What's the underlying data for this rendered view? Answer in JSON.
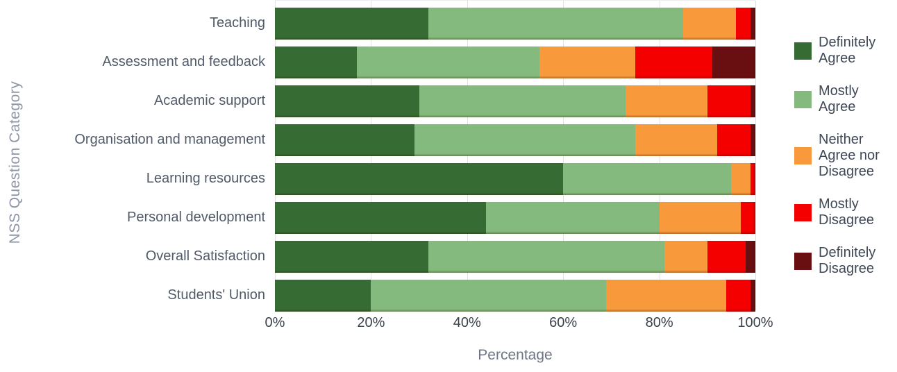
{
  "chart_data": {
    "type": "bar",
    "orientation": "horizontal-stacked",
    "title": "",
    "xlabel": "Percentage",
    "ylabel": "NSS Question Category",
    "xlim": [
      0,
      100
    ],
    "x_ticks": [
      "0%",
      "20%",
      "40%",
      "60%",
      "80%",
      "100%"
    ],
    "grid": "vertical",
    "legend_position": "right",
    "categories": [
      "Teaching",
      "Assessment and feedback",
      "Academic support",
      "Organisation and management",
      "Learning resources",
      "Personal development",
      "Overall Satisfaction",
      "Students' Union"
    ],
    "series": [
      {
        "name": "Definitely Agree",
        "color": "#366c34",
        "values": [
          32,
          17,
          30,
          29,
          60,
          44,
          32,
          20
        ]
      },
      {
        "name": "Mostly Agree",
        "color": "#84ba7d",
        "values": [
          53,
          38,
          43,
          46,
          35,
          36,
          49,
          49
        ]
      },
      {
        "name": "Neither Agree nor Disagree",
        "color": "#f89a3c",
        "values": [
          11,
          20,
          17,
          17,
          4,
          17,
          9,
          25
        ]
      },
      {
        "name": "Mostly Disagree",
        "color": "#f40000",
        "values": [
          3,
          16,
          9,
          7,
          1,
          3,
          8,
          5
        ]
      },
      {
        "name": "Definitely Disagree",
        "color": "#6a0f11",
        "values": [
          1,
          9,
          1,
          1,
          0,
          0,
          2,
          1
        ]
      }
    ]
  }
}
